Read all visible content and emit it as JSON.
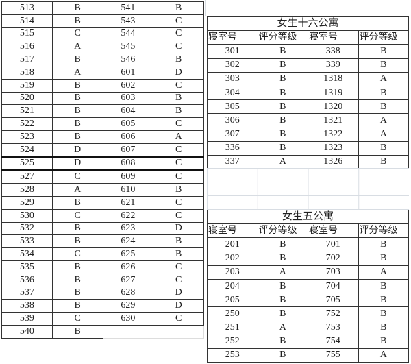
{
  "left_table": {
    "rows": [
      [
        "513",
        "B",
        "541",
        "B"
      ],
      [
        "514",
        "B",
        "543",
        "C"
      ],
      [
        "515",
        "C",
        "544",
        "C"
      ],
      [
        "516",
        "A",
        "545",
        "C"
      ],
      [
        "517",
        "B",
        "546",
        "B"
      ],
      [
        "518",
        "A",
        "601",
        "D"
      ],
      [
        "519",
        "B",
        "602",
        "C"
      ],
      [
        "520",
        "B",
        "603",
        "B"
      ],
      [
        "521",
        "B",
        "604",
        "B"
      ],
      [
        "522",
        "B",
        "605",
        "C"
      ],
      [
        "523",
        "B",
        "606",
        "A"
      ],
      [
        "524",
        "D",
        "607",
        "C"
      ],
      [
        "525",
        "D",
        "608",
        "C"
      ],
      [
        "527",
        "C",
        "609",
        "C"
      ],
      [
        "528",
        "A",
        "610",
        "B"
      ],
      [
        "529",
        "B",
        "621",
        "C"
      ],
      [
        "530",
        "C",
        "622",
        "C"
      ],
      [
        "532",
        "B",
        "623",
        "D"
      ],
      [
        "533",
        "B",
        "624",
        "B"
      ],
      [
        "534",
        "C",
        "625",
        "B"
      ],
      [
        "535",
        "B",
        "626",
        "C"
      ],
      [
        "536",
        "B",
        "627",
        "C"
      ],
      [
        "537",
        "B",
        "628",
        "D"
      ],
      [
        "538",
        "B",
        "629",
        "D"
      ],
      [
        "539",
        "C",
        "630",
        "C"
      ],
      [
        "540",
        "B",
        "",
        ""
      ]
    ]
  },
  "dorm16": {
    "title": "女生十六公寓",
    "headers": [
      "寝室号",
      "评分等级",
      "寝室号",
      "评分等级"
    ],
    "rows": [
      [
        "301",
        "B",
        "338",
        "B"
      ],
      [
        "302",
        "B",
        "339",
        "B"
      ],
      [
        "303",
        "B",
        "1318",
        "A"
      ],
      [
        "304",
        "B",
        "1319",
        "B"
      ],
      [
        "305",
        "B",
        "1320",
        "B"
      ],
      [
        "306",
        "B",
        "1321",
        "A"
      ],
      [
        "307",
        "B",
        "1322",
        "A"
      ],
      [
        "336",
        "B",
        "1323",
        "B"
      ],
      [
        "337",
        "A",
        "1326",
        "B"
      ]
    ]
  },
  "dorm5": {
    "title": "女生五公寓",
    "headers": [
      "寝室号",
      "评分等级",
      "寝室号",
      "评分等级"
    ],
    "rows": [
      [
        "201",
        "B",
        "701",
        "B"
      ],
      [
        "202",
        "B",
        "702",
        "B"
      ],
      [
        "203",
        "A",
        "703",
        "A"
      ],
      [
        "204",
        "B",
        "704",
        "B"
      ],
      [
        "205",
        "B",
        "705",
        "B"
      ],
      [
        "250",
        "B",
        "752",
        "B"
      ],
      [
        "251",
        "A",
        "753",
        "B"
      ],
      [
        "252",
        "B",
        "754",
        "B"
      ],
      [
        "253",
        "B",
        "755",
        "A"
      ]
    ]
  }
}
